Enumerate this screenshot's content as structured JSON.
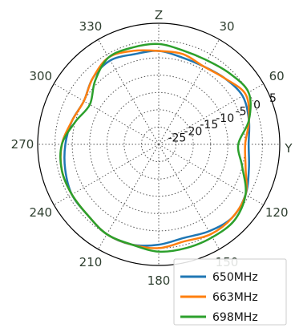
{
  "chart_data": {
    "type": "polar-line",
    "axis_names": {
      "top": "Z",
      "right": "Y"
    },
    "angle_ticks": [
      {
        "deg": 0,
        "label": ""
      },
      {
        "deg": 30,
        "label": "30"
      },
      {
        "deg": 60,
        "label": "60"
      },
      {
        "deg": 90,
        "label": ""
      },
      {
        "deg": 120,
        "label": "120"
      },
      {
        "deg": 150,
        "label": "150"
      },
      {
        "deg": 180,
        "label": "180"
      },
      {
        "deg": 210,
        "label": "210"
      },
      {
        "deg": 240,
        "label": "240"
      },
      {
        "deg": 270,
        "label": "270"
      },
      {
        "deg": 300,
        "label": "300"
      },
      {
        "deg": 330,
        "label": "330"
      }
    ],
    "radial_ticks": [
      -25,
      -20,
      -15,
      -10,
      -5,
      0,
      5
    ],
    "rlim": [
      -30,
      5
    ],
    "angle_direction": "clockwise",
    "zero_location": "top",
    "grid": true,
    "legend_position": "bottom-right",
    "series": [
      {
        "name": "650MHz",
        "color": "#1f77b4",
        "theta": [
          0,
          15,
          30,
          45,
          60,
          75,
          90,
          105,
          120,
          135,
          150,
          165,
          180,
          195,
          210,
          225,
          240,
          255,
          270,
          285,
          300,
          315,
          330,
          345
        ],
        "r": [
          -3,
          -4,
          -4,
          -3,
          -2,
          -3,
          -4,
          -3,
          -1,
          0,
          -1,
          -2,
          -1,
          0,
          0,
          -1,
          -1,
          -2,
          -3,
          -4,
          -5,
          -3,
          -2,
          -3
        ]
      },
      {
        "name": "663MHz",
        "color": "#ff7f0e",
        "theta": [
          0,
          15,
          30,
          45,
          60,
          75,
          90,
          105,
          120,
          135,
          150,
          165,
          180,
          195,
          210,
          225,
          240,
          255,
          270,
          285,
          300,
          315,
          330,
          345
        ],
        "r": [
          -3,
          -3,
          -4,
          -3,
          -1,
          -3,
          -5,
          -4,
          -1,
          0,
          0,
          -1,
          0,
          0,
          0,
          -1,
          -1,
          -1,
          -2,
          -4,
          -5,
          -3,
          -1,
          -2
        ]
      },
      {
        "name": "698MHz",
        "color": "#2ca02c",
        "theta": [
          0,
          15,
          30,
          45,
          60,
          75,
          90,
          105,
          120,
          135,
          150,
          165,
          180,
          195,
          210,
          225,
          240,
          255,
          270,
          285,
          300,
          315,
          330,
          345
        ],
        "r": [
          -1,
          -2,
          -2,
          -1,
          0,
          -3,
          -7,
          -5,
          -1,
          1,
          1,
          1,
          1,
          0,
          0,
          -1,
          -1,
          -1,
          -2,
          -5,
          -7,
          -4,
          -1,
          -1
        ]
      }
    ]
  }
}
